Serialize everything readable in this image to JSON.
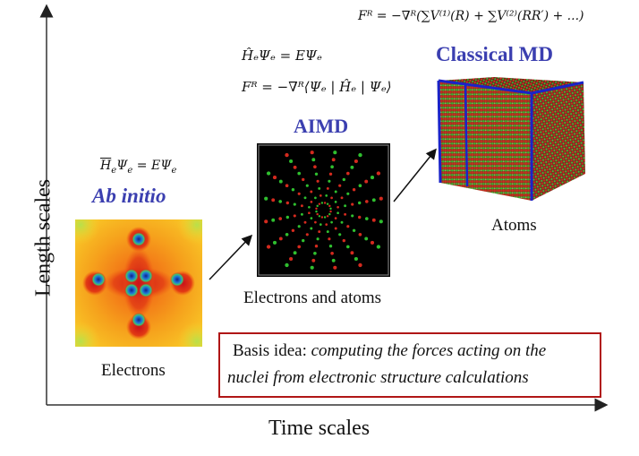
{
  "axes": {
    "y_label": "Length scales",
    "x_label": "Time scales"
  },
  "ab_initio": {
    "equation": {
      "lhs_H": "H",
      "lhs_sub": "e",
      "lhs_psi": "Ψ",
      "lhs_psi_sub": "e",
      "rhs": "= EΨ",
      "rhs_sub": "e"
    },
    "title": "Ab initio",
    "caption": "Electrons"
  },
  "aimd": {
    "equation1": "ĤₑΨₑ = EΨₑ",
    "equation2": "Fᴿ = −∇ᴿ⟨Ψₑ | Ĥₑ | Ψₑ⟩",
    "title": "AIMD",
    "caption": "Electrons and atoms"
  },
  "classical_md": {
    "equation": "Fᴿ = −∇ᴿ(∑V⁽¹⁾(R) + ∑V⁽²⁾(RR′) + ...)",
    "title": "Classical MD",
    "caption": "Atoms"
  },
  "basis": {
    "prefix": "Basis idea: ",
    "emphasis_line1": "computing the forces acting on the",
    "emphasis_line2": "nuclei from electronic structure calculations"
  },
  "colors": {
    "title_blue": "#3b3fb0",
    "box_border": "#b01616",
    "atom_red": "#d42a1e",
    "atom_green": "#2fbf2f",
    "cube_edge": "#1a23c8"
  }
}
